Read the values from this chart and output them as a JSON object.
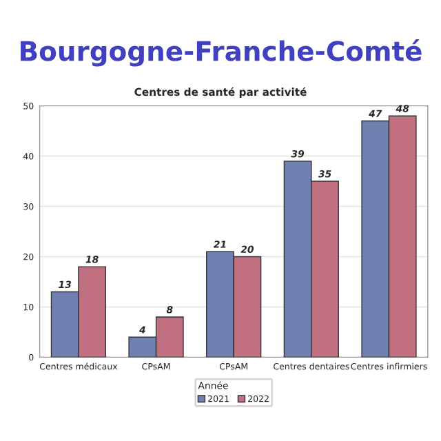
{
  "chart_data": {
    "type": "bar",
    "title": "Bourgogne-Franche-Comté",
    "subtitle": "Centres de santé par activité",
    "categories": [
      "Centres médicaux",
      "CPsAM",
      "CPsAM",
      "Centres dentaires",
      "Centres infirmiers"
    ],
    "series": [
      {
        "name": "2021",
        "color": "#7080b0",
        "values": [
          13,
          4,
          21,
          39,
          47
        ]
      },
      {
        "name": "2022",
        "color": "#c07080",
        "values": [
          18,
          8,
          20,
          35,
          48
        ]
      }
    ],
    "legend_title": "Année",
    "legend": "bottom",
    "data_labels": true,
    "ylim": [
      0,
      50
    ],
    "yticks": [
      0,
      10,
      20,
      30,
      40,
      50
    ],
    "grid": "y"
  }
}
